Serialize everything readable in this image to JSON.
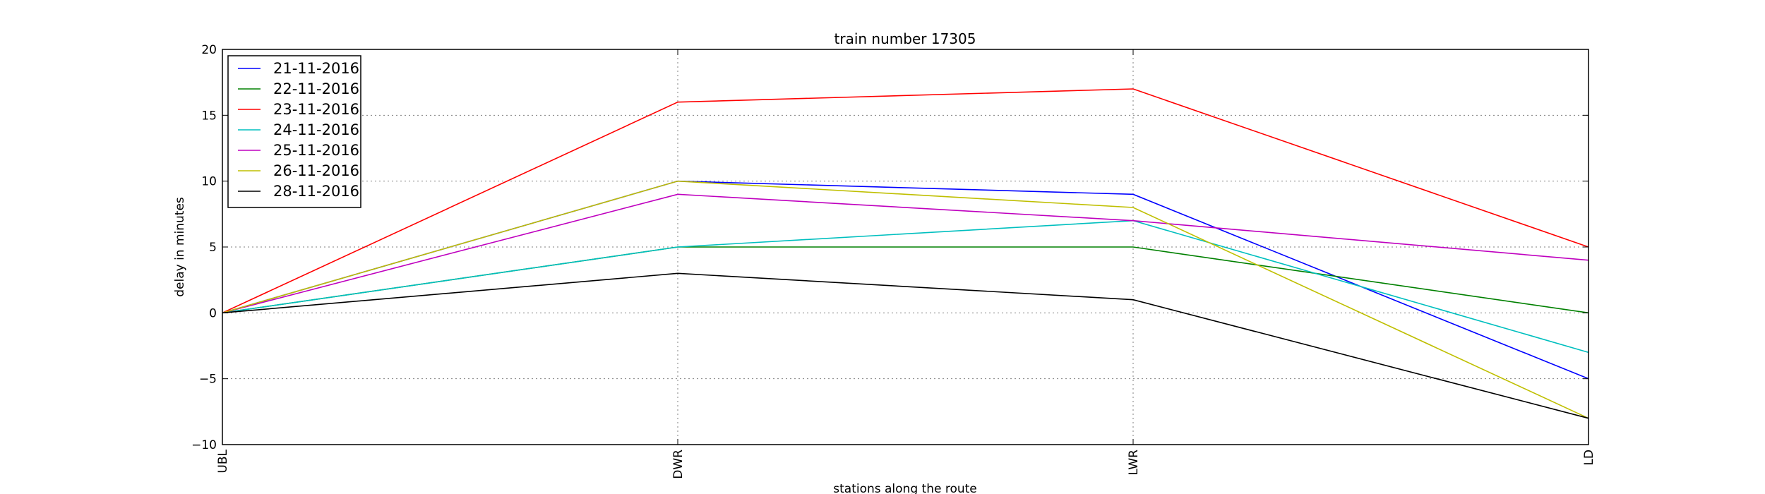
{
  "chart_data": {
    "type": "line",
    "title": "train number 17305",
    "xlabel": "stations along the route",
    "ylabel": "delay in minutes",
    "categories": [
      "UBL",
      "DWR",
      "LWR",
      "LD"
    ],
    "ylim": [
      -10,
      20
    ],
    "yticks": [
      -10,
      -5,
      0,
      5,
      10,
      15,
      20
    ],
    "ytick_labels": [
      "−10",
      "−5",
      "0",
      "5",
      "10",
      "15",
      "20"
    ],
    "grid": true,
    "legend_position": "top-left",
    "series": [
      {
        "name": "21-11-2016",
        "color": "#0000ff",
        "values": [
          0,
          10,
          9,
          -5
        ]
      },
      {
        "name": "22-11-2016",
        "color": "#008000",
        "values": [
          0,
          5,
          5,
          0
        ]
      },
      {
        "name": "23-11-2016",
        "color": "#ff0000",
        "values": [
          0,
          16,
          17,
          5
        ]
      },
      {
        "name": "24-11-2016",
        "color": "#00bfbf",
        "values": [
          0,
          5,
          7,
          -3
        ]
      },
      {
        "name": "25-11-2016",
        "color": "#bf00bf",
        "values": [
          0,
          9,
          7,
          4
        ]
      },
      {
        "name": "26-11-2016",
        "color": "#bfbf00",
        "values": [
          0,
          10,
          8,
          -8
        ]
      },
      {
        "name": "28-11-2016",
        "color": "#000000",
        "values": [
          0,
          3,
          1,
          -8
        ]
      }
    ]
  }
}
